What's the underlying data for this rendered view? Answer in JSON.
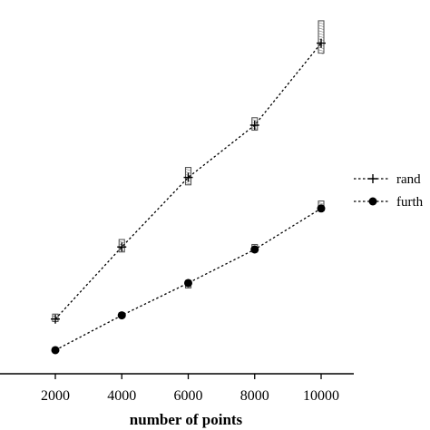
{
  "chart_data": {
    "type": "line",
    "xlabel": "number of points",
    "ylabel": "",
    "x": [
      2000,
      4000,
      6000,
      8000,
      10000
    ],
    "xlim": [
      0,
      11000
    ],
    "ylim": [
      0,
      14.3
    ],
    "x_ticks": [
      2000,
      4000,
      6000,
      8000,
      10000
    ],
    "x_tick_labels": [
      "2000",
      "4000",
      "6000",
      "8000",
      "10000"
    ],
    "grid": false,
    "legend_position": "right",
    "series": [
      {
        "name": "rand",
        "marker": "plus",
        "line_style": "dotted",
        "values": [
          2.2,
          5.1,
          7.9,
          10.0,
          13.3
        ],
        "box_low": [
          2.1,
          4.9,
          7.6,
          9.8,
          12.9
        ],
        "box_high": [
          2.4,
          5.4,
          8.3,
          10.3,
          14.2
        ]
      },
      {
        "name": "furth",
        "marker": "circle",
        "line_style": "dotted",
        "values": [
          0.95,
          2.35,
          3.65,
          5.0,
          6.65
        ],
        "box_low": [
          0.95,
          2.3,
          3.45,
          4.9,
          6.55
        ],
        "box_high": [
          0.95,
          2.45,
          3.7,
          5.2,
          6.95
        ]
      }
    ]
  }
}
